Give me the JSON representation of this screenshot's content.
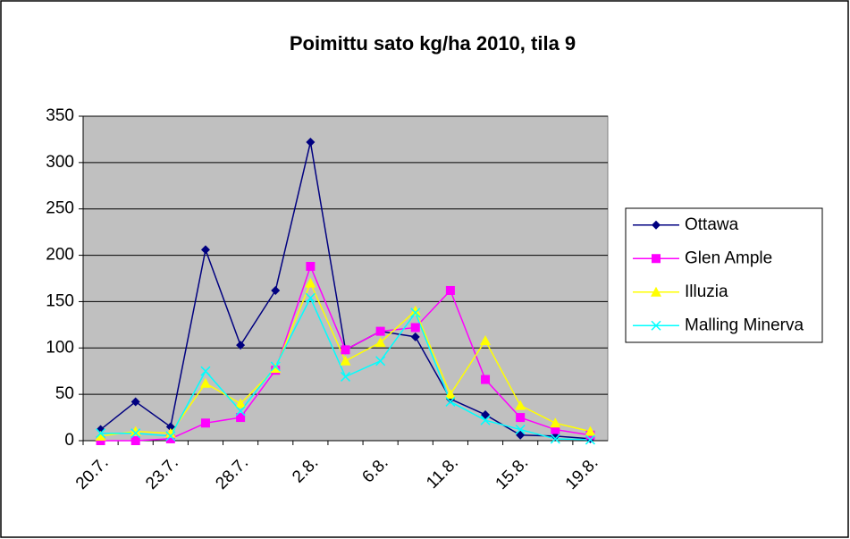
{
  "chart_data": {
    "type": "line",
    "title": "Poimittu sato kg/ha 2010, tila 9",
    "categories": [
      "20.7.",
      null,
      "23.7.",
      null,
      "28.7.",
      null,
      "2.8.",
      null,
      "6.8.",
      null,
      "11.8.",
      null,
      "15.8.",
      null,
      "19.8."
    ],
    "series": [
      {
        "name": "Ottawa",
        "color": "#000080",
        "marker": "diamond",
        "values": [
          12,
          42,
          15,
          206,
          103,
          162,
          322,
          98,
          118,
          112,
          45,
          28,
          6,
          5,
          2
        ]
      },
      {
        "name": "Glen Ample",
        "color": "#ff00ff",
        "marker": "square",
        "values": [
          0,
          0,
          2,
          19,
          25,
          76,
          188,
          98,
          118,
          122,
          162,
          66,
          25,
          12,
          6
        ]
      },
      {
        "name": "Illuzia",
        "color": "#ffff00",
        "marker": "triangle",
        "values": [
          5,
          10,
          8,
          62,
          40,
          78,
          170,
          86,
          106,
          140,
          50,
          108,
          38,
          19,
          10
        ]
      },
      {
        "name": "Malling Minerva",
        "color": "#00ffff",
        "marker": "x",
        "values": [
          8,
          8,
          5,
          75,
          32,
          80,
          154,
          69,
          86,
          138,
          42,
          22,
          12,
          2,
          1
        ]
      }
    ],
    "ylim": [
      0,
      350
    ],
    "yticks": [
      0,
      50,
      100,
      150,
      200,
      250,
      300,
      350
    ],
    "grid": true,
    "legend": "right"
  }
}
